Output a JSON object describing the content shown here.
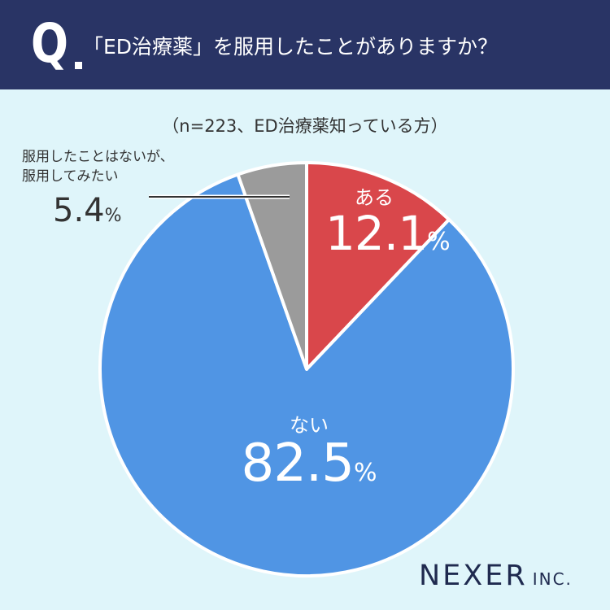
{
  "header": {
    "q_letter": "Q",
    "question": "「ED治療薬」を服用したことがありますか？"
  },
  "subtitle": "（n=223、ED治療薬知っている方）",
  "chart_data": {
    "type": "pie",
    "start": "top",
    "direction": "clockwise",
    "slices": [
      {
        "label": "ある",
        "value": 12.1,
        "display": "12.1",
        "unit": "%",
        "color": "#d9474b"
      },
      {
        "label": "ない",
        "value": 82.5,
        "display": "82.5",
        "unit": "%",
        "color": "#5095e4"
      },
      {
        "label_lines": [
          "服用したことはないが、",
          "服用してみたい"
        ],
        "value": 5.4,
        "display": "5.4",
        "unit": "%",
        "color": "#9b9b9b"
      }
    ]
  },
  "logo": {
    "main": "NEXER",
    "sub": "INC."
  }
}
